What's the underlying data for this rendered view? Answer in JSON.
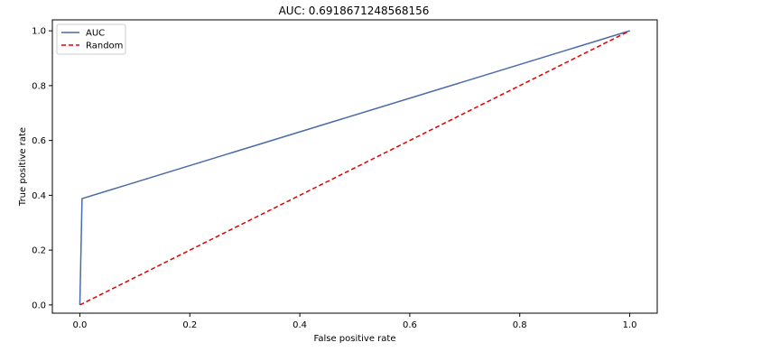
{
  "chart_data": {
    "type": "line",
    "title": "AUC: 0.6918671248568156",
    "xlabel": "False positive rate",
    "ylabel": "True positive rate",
    "xlim": [
      -0.05,
      1.05
    ],
    "ylim": [
      -0.03,
      1.04
    ],
    "x_ticks": [
      0.0,
      0.2,
      0.4,
      0.6,
      0.8,
      1.0
    ],
    "x_tick_labels": [
      "0.0",
      "0.2",
      "0.4",
      "0.6",
      "0.8",
      "1.0"
    ],
    "y_ticks": [
      0.0,
      0.2,
      0.4,
      0.6,
      0.8,
      1.0
    ],
    "y_tick_labels": [
      "0.0",
      "0.2",
      "0.4",
      "0.6",
      "0.8",
      "1.0"
    ],
    "grid": false,
    "legend_position": "top-left",
    "series": [
      {
        "name": "AUC",
        "color": "#4a6aa8",
        "style": "solid",
        "x": [
          0.0,
          0.004,
          1.0
        ],
        "y": [
          0.0,
          0.388,
          1.0
        ]
      },
      {
        "name": "Random",
        "color": "#e00000",
        "style": "dashed",
        "x": [
          0.0,
          1.0
        ],
        "y": [
          0.0,
          1.0
        ]
      }
    ]
  }
}
